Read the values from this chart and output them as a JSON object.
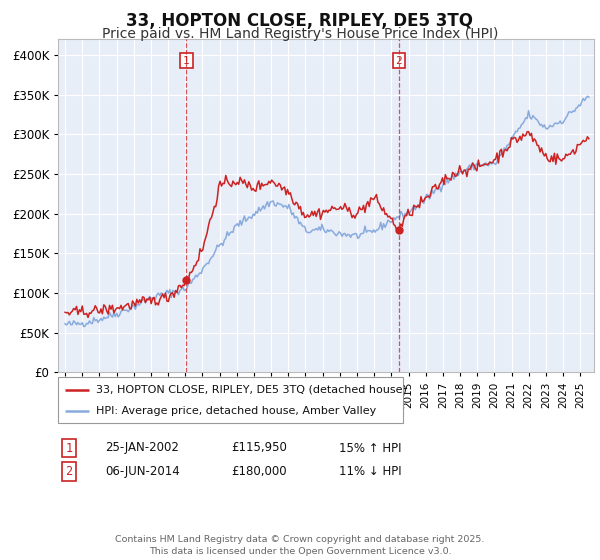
{
  "title": "33, HOPTON CLOSE, RIPLEY, DE5 3TQ",
  "subtitle": "Price paid vs. HM Land Registry's House Price Index (HPI)",
  "ylim": [
    0,
    420000
  ],
  "xlim_start": 1994.6,
  "xlim_end": 2025.8,
  "legend_line1": "33, HOPTON CLOSE, RIPLEY, DE5 3TQ (detached house)",
  "legend_line2": "HPI: Average price, detached house, Amber Valley",
  "marker1_date": "25-JAN-2002",
  "marker1_price": "£115,950",
  "marker1_hpi": "15% ↑ HPI",
  "marker2_date": "06-JUN-2014",
  "marker2_price": "£180,000",
  "marker2_hpi": "11% ↓ HPI",
  "vline1_x": 2002.07,
  "vline2_x": 2014.43,
  "marker1_y": 115950,
  "marker2_y": 180000,
  "red_color": "#cc2222",
  "blue_color": "#88aadd",
  "background_color": "#e8eef8",
  "grid_color": "#ffffff",
  "footer": "Contains HM Land Registry data © Crown copyright and database right 2025.\nThis data is licensed under the Open Government Licence v3.0.",
  "title_fontsize": 12,
  "subtitle_fontsize": 10,
  "hpi_knots_x": [
    1995,
    1996,
    1997,
    1998,
    1999,
    2000,
    2001,
    2002,
    2003,
    2004,
    2005,
    2006,
    2007,
    2008,
    2009,
    2010,
    2011,
    2012,
    2013,
    2014,
    2015,
    2016,
    2017,
    2018,
    2019,
    2020,
    2021,
    2022,
    2023,
    2024,
    2025.5
  ],
  "hpi_knots_y": [
    60000,
    62000,
    67000,
    74000,
    83000,
    94000,
    100000,
    105000,
    130000,
    160000,
    185000,
    200000,
    215000,
    208000,
    178000,
    180000,
    175000,
    172000,
    178000,
    192000,
    202000,
    218000,
    238000,
    252000,
    262000,
    262000,
    293000,
    325000,
    308000,
    318000,
    348000
  ],
  "red_knots_x": [
    1995,
    1996,
    1997,
    1998,
    1999,
    2000,
    2001,
    2002.07,
    2003,
    2004,
    2005,
    2006,
    2007,
    2008,
    2009,
    2010,
    2011,
    2012,
    2013,
    2014.43,
    2015,
    2016,
    2017,
    2018,
    2019,
    2020,
    2021,
    2022,
    2023,
    2024,
    2025.5
  ],
  "red_knots_y": [
    75000,
    76000,
    78000,
    81000,
    86000,
    90000,
    95000,
    115950,
    155000,
    235000,
    242000,
    232000,
    242000,
    228000,
    198000,
    202000,
    208000,
    200000,
    220000,
    180000,
    200000,
    218000,
    242000,
    255000,
    258000,
    268000,
    290000,
    302000,
    272000,
    268000,
    298000
  ],
  "noise_seed": 42,
  "hpi_noise_std": 2500,
  "red_noise_std": 3500
}
